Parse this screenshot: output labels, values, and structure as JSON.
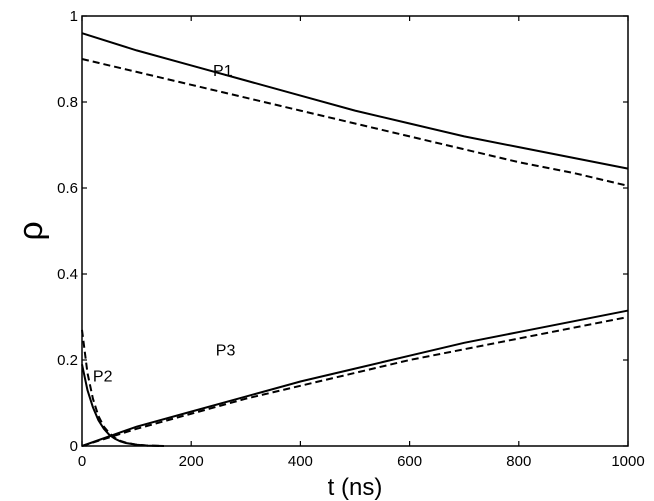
{
  "chart_data": {
    "type": "line",
    "title": "",
    "xlabel": "t (ns)",
    "ylabel": "ρ",
    "xlim": [
      0,
      1000
    ],
    "ylim": [
      0,
      1
    ],
    "grid": false,
    "xticks": [
      {
        "value": 0,
        "label": "0"
      },
      {
        "value": 200,
        "label": "200"
      },
      {
        "value": 400,
        "label": "400"
      },
      {
        "value": 600,
        "label": "600"
      },
      {
        "value": 800,
        "label": "800"
      },
      {
        "value": 1000,
        "label": "1000"
      }
    ],
    "yticks": [
      {
        "value": 0,
        "label": "0"
      },
      {
        "value": 0.2,
        "label": "0.2"
      },
      {
        "value": 0.4,
        "label": "0.4"
      },
      {
        "value": 0.6,
        "label": "0.6"
      },
      {
        "value": 0.8,
        "label": "0.8"
      },
      {
        "value": 1,
        "label": "1"
      }
    ],
    "series": [
      {
        "style": "solid",
        "x": [
          0,
          100,
          200,
          300,
          400,
          500,
          600,
          700,
          800,
          900,
          1000
        ],
        "y": [
          0.96,
          0.92,
          0.885,
          0.85,
          0.815,
          0.78,
          0.75,
          0.72,
          0.695,
          0.67,
          0.645
        ]
      },
      {
        "style": "dashed",
        "x": [
          0,
          100,
          200,
          300,
          400,
          500,
          600,
          700,
          800,
          900,
          1000
        ],
        "y": [
          0.9,
          0.87,
          0.84,
          0.81,
          0.78,
          0.75,
          0.72,
          0.69,
          0.66,
          0.635,
          0.605
        ]
      },
      {
        "style": "solid",
        "x": [
          0,
          10,
          20,
          30,
          40,
          50,
          60,
          70,
          80,
          100,
          120,
          150
        ],
        "y": [
          0.19,
          0.13,
          0.09,
          0.06,
          0.04,
          0.026,
          0.017,
          0.011,
          0.007,
          0.003,
          0.001,
          0.0
        ]
      },
      {
        "style": "dashed",
        "x": [
          0,
          10,
          20,
          30,
          40,
          50,
          60,
          70,
          80,
          100,
          120,
          150
        ],
        "y": [
          0.27,
          0.17,
          0.11,
          0.07,
          0.045,
          0.03,
          0.019,
          0.012,
          0.008,
          0.003,
          0.001,
          0.0
        ]
      },
      {
        "style": "solid",
        "x": [
          0,
          100,
          200,
          300,
          400,
          500,
          600,
          700,
          800,
          900,
          1000
        ],
        "y": [
          0.0,
          0.045,
          0.08,
          0.115,
          0.15,
          0.18,
          0.21,
          0.24,
          0.265,
          0.29,
          0.315
        ]
      },
      {
        "style": "dashed",
        "x": [
          0,
          100,
          200,
          300,
          400,
          500,
          600,
          700,
          800,
          900,
          1000
        ],
        "y": [
          0.0,
          0.04,
          0.075,
          0.11,
          0.14,
          0.17,
          0.2,
          0.225,
          0.25,
          0.275,
          0.3
        ]
      }
    ],
    "annotations": [
      {
        "text": "P1",
        "x": 240,
        "y": 0.86
      },
      {
        "text": "P2",
        "x": 20,
        "y": 0.15
      },
      {
        "text": "P3",
        "x": 245,
        "y": 0.21
      }
    ]
  }
}
